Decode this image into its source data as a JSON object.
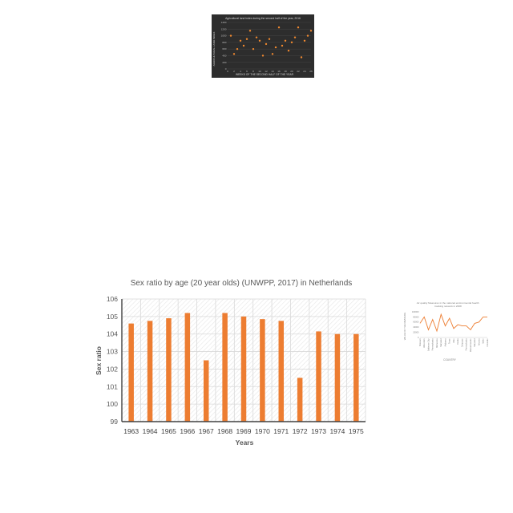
{
  "chart_data": [
    {
      "type": "scatter",
      "title": "Agricultural land index during the second half of the year, 2016",
      "xlabel": "WEEKS OF THE SECOND HALF OF THE YEAR",
      "ylabel": "AGRICULTURAL LAND INDEX",
      "xlim": [
        0,
        26
      ],
      "ylim": [
        0,
        1400
      ],
      "x_ticks": [
        "0",
        "2",
        "4",
        "6",
        "8",
        "10",
        "12",
        "14",
        "16",
        "18",
        "20",
        "22",
        "24",
        "26"
      ],
      "y_ticks": [
        "0",
        "200",
        "400",
        "600",
        "800",
        "1000",
        "1200",
        "1400"
      ],
      "grid": true,
      "background": "#2d2d2d",
      "color": "#f0892f",
      "points": [
        {
          "x": 1,
          "y": 1000
        },
        {
          "x": 2,
          "y": 450
        },
        {
          "x": 3,
          "y": 600
        },
        {
          "x": 4,
          "y": 850
        },
        {
          "x": 5,
          "y": 700
        },
        {
          "x": 6,
          "y": 900
        },
        {
          "x": 7,
          "y": 1150
        },
        {
          "x": 8,
          "y": 600
        },
        {
          "x": 9,
          "y": 950
        },
        {
          "x": 10,
          "y": 850
        },
        {
          "x": 11,
          "y": 400
        },
        {
          "x": 12,
          "y": 750
        },
        {
          "x": 13,
          "y": 900
        },
        {
          "x": 14,
          "y": 450
        },
        {
          "x": 15,
          "y": 650
        },
        {
          "x": 16,
          "y": 1250
        },
        {
          "x": 17,
          "y": 700
        },
        {
          "x": 18,
          "y": 850
        },
        {
          "x": 19,
          "y": 550
        },
        {
          "x": 20,
          "y": 800
        },
        {
          "x": 21,
          "y": 950
        },
        {
          "x": 22,
          "y": 1250
        },
        {
          "x": 23,
          "y": 350
        },
        {
          "x": 24,
          "y": 850
        },
        {
          "x": 25,
          "y": 1000
        },
        {
          "x": 26,
          "y": 1150
        }
      ]
    },
    {
      "type": "bar",
      "title": "Sex ratio by age (20 year olds) (UNWPP, 2017) in Netherlands",
      "xlabel": "Years",
      "ylabel": "Sex ratio",
      "ylim": [
        99,
        106
      ],
      "y_ticks": [
        "99",
        "100",
        "101",
        "102",
        "103",
        "104",
        "105",
        "106"
      ],
      "grid": true,
      "color": "#ed7d31",
      "categories": [
        "1963",
        "1964",
        "1965",
        "1966",
        "1967",
        "1968",
        "1969",
        "1970",
        "1971",
        "1972",
        "1973",
        "1974",
        "1975"
      ],
      "values": [
        104.6,
        104.75,
        104.9,
        105.2,
        102.5,
        105.2,
        105.0,
        104.85,
        104.75,
        101.5,
        104.15,
        104.0,
        104.0
      ]
    },
    {
      "type": "line",
      "title": "Air quality Measures in the national environmental health tracking network in 2008",
      "xlabel": "COUNTRY",
      "ylabel": "VALUE OF THE MEASURE",
      "ylim": [
        0,
        100000
      ],
      "y_ticks": [
        "0",
        "20000",
        "40000",
        "60000",
        "80000",
        "100000"
      ],
      "color": "#ed7d31",
      "categories": [
        "Missouri",
        "Wisconsin",
        "Baltimore City",
        "Pennsylvania",
        "Minnesota",
        "Maryland",
        "Alabama",
        "Texas",
        "Ohio",
        "Florida",
        "Delaware",
        "Pennsylvania",
        "Massachusetts",
        "Maryland",
        "Arizona",
        "Idaho",
        "Colorado"
      ],
      "values": [
        55000,
        80000,
        30000,
        70000,
        25000,
        90000,
        45000,
        75000,
        35000,
        50000,
        45000,
        45000,
        30000,
        55000,
        60000,
        80000,
        80000
      ]
    }
  ]
}
